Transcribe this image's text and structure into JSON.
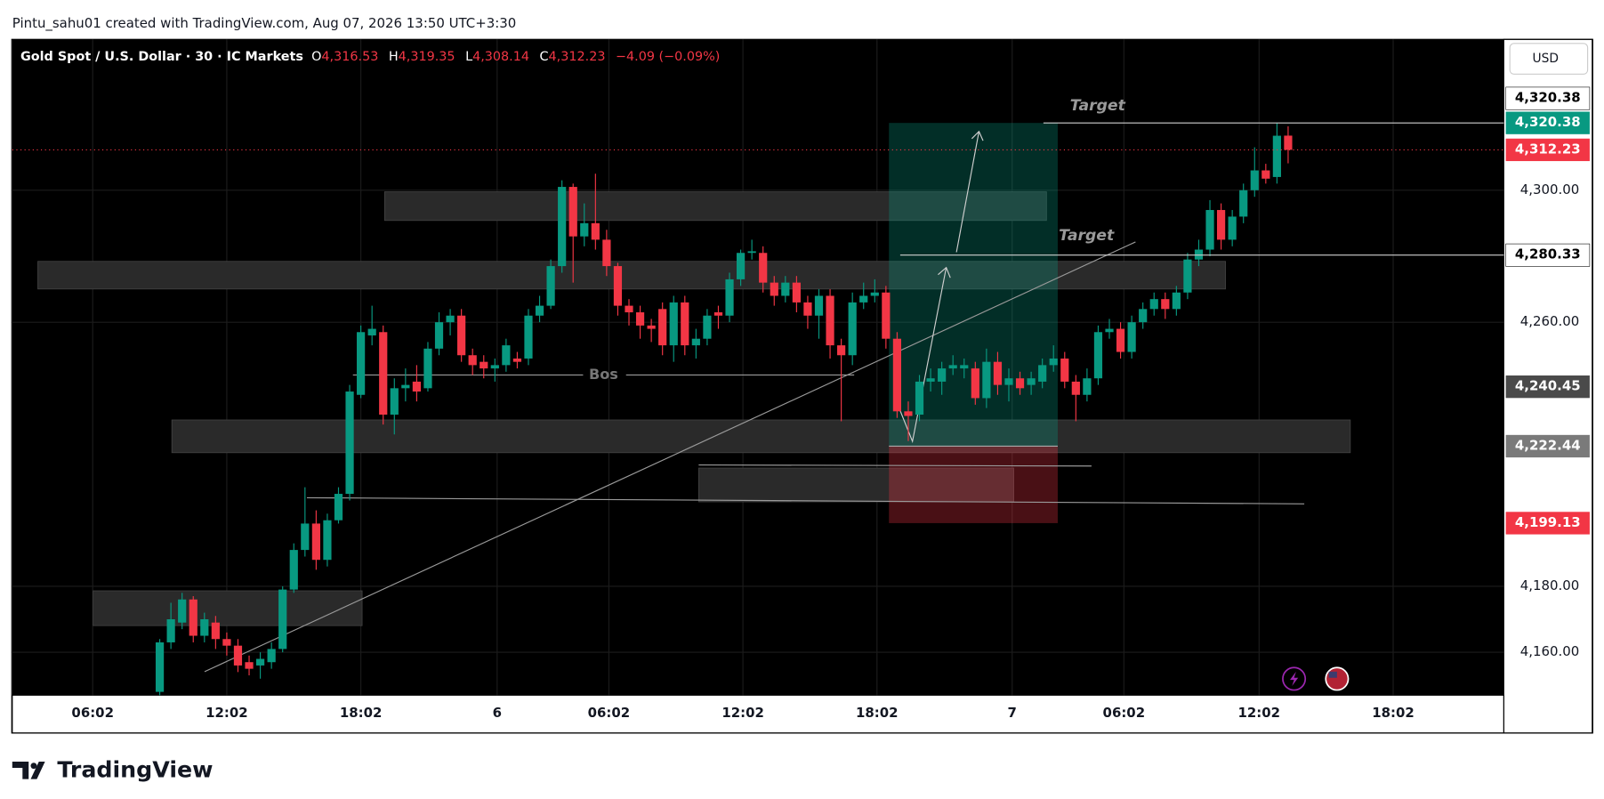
{
  "header": "Pintu_sahu01 created with TradingView.com, Aug 07, 2026 13:50 UTC+3:30",
  "logo": "TradingView",
  "chart_data": {
    "type": "candlestick",
    "legend": {
      "symbol": "Gold Spot / U.S. Dollar · 30 · IC Markets",
      "o_label": "O",
      "o": "4,316.53",
      "h_label": "H",
      "h": "4,319.35",
      "l_label": "L",
      "l": "4,308.14",
      "c_label": "C",
      "c": "4,312.23",
      "change": "−4.09 (−0.09%)"
    },
    "currency": "USD",
    "up_color": "#089981",
    "down_color": "#f23645",
    "open": [
      4148,
      4163,
      4169,
      4176,
      4165,
      4169,
      4164,
      4162,
      4157,
      4156,
      4157,
      4161,
      4179,
      4191,
      4199,
      4188,
      4200,
      4208,
      4238,
      4256,
      4257,
      4232,
      4240,
      4242,
      4240,
      4252,
      4260,
      4262,
      4250,
      4248,
      4246,
      4247,
      4249,
      4249,
      4262,
      4265,
      4277,
      4301,
      4286,
      4290,
      4285,
      4277,
      4265,
      4263,
      4259,
      4264,
      4253,
      4266,
      4253,
      4255,
      4263,
      4262,
      4273,
      4281,
      4281,
      4272,
      4268,
      4272,
      4266,
      4262,
      4268,
      4253,
      4250,
      4266,
      4268,
      4269,
      4255,
      4233,
      4232,
      4242,
      4242,
      4246,
      4246,
      4246,
      4237,
      4248,
      4241,
      4243,
      4241,
      4242,
      4247,
      4249,
      4242,
      4238,
      4243,
      4257,
      4258,
      4251,
      4260,
      4264,
      4267,
      4264,
      4269,
      4279,
      4282,
      4294,
      4285,
      4292,
      4300,
      4306,
      4304,
      4316.53
    ],
    "high": [
      4164,
      4175,
      4178,
      4177,
      4172,
      4171,
      4166,
      4164,
      4159,
      4160,
      4163,
      4180,
      4193,
      4210,
      4203,
      4202,
      4210,
      4241,
      4259,
      4265,
      4259,
      4243,
      4246,
      4247,
      4254,
      4263,
      4264,
      4264,
      4252,
      4250,
      4249,
      4255,
      4251,
      4264,
      4268,
      4279,
      4303,
      4302,
      4296,
      4305,
      4288,
      4278,
      4267,
      4265,
      4261,
      4266,
      4268,
      4268,
      4258,
      4264,
      4265,
      4275,
      4282,
      4285,
      4283,
      4274,
      4274,
      4274,
      4268,
      4270,
      4270,
      4255,
      4269,
      4272,
      4273,
      4271,
      4257,
      4236,
      4244,
      4246,
      4248,
      4250,
      4249,
      4248,
      4252,
      4251,
      4246,
      4245,
      4245,
      4249,
      4253,
      4251,
      4244,
      4246,
      4259,
      4261,
      4260,
      4262,
      4266,
      4269,
      4269,
      4271,
      4281,
      4285,
      4297,
      4296,
      4294,
      4302,
      4313,
      4308,
      4320.4,
      4319.35
    ],
    "low": [
      4147,
      4161,
      4167,
      4163,
      4163,
      4161,
      4159,
      4154,
      4153,
      4152,
      4155,
      4160,
      4178,
      4189,
      4185,
      4186,
      4199,
      4206,
      4237,
      4253,
      4229,
      4226,
      4236,
      4236,
      4239,
      4250,
      4256,
      4248,
      4244,
      4243,
      4242,
      4245,
      4246,
      4247,
      4260,
      4264,
      4275,
      4272,
      4283,
      4282,
      4274,
      4262,
      4259,
      4255,
      4254,
      4250,
      4248,
      4250,
      4249,
      4253,
      4258,
      4260,
      4271,
      4279,
      4269,
      4265,
      4266,
      4263,
      4258,
      4255,
      4249,
      4230,
      4247,
      4264,
      4266,
      4252,
      4231,
      4224,
      4230,
      4239,
      4238,
      4244,
      4243,
      4235,
      4234,
      4238,
      4236,
      4238,
      4238,
      4240,
      4245,
      4240,
      4230,
      4236,
      4241,
      4255,
      4249,
      4249,
      4258,
      4262,
      4261,
      4262,
      4267,
      4277,
      4280,
      4282,
      4283,
      4290,
      4298,
      4302,
      4302,
      4308.14
    ],
    "close": [
      4163,
      4170,
      4176,
      4165,
      4170,
      4164,
      4162,
      4156,
      4155,
      4158,
      4161,
      4179,
      4191,
      4199,
      4188,
      4200,
      4208,
      4239,
      4257,
      4258,
      4232,
      4240,
      4241,
      4239,
      4252,
      4260,
      4262,
      4250,
      4247,
      4246,
      4247,
      4253,
      4248,
      4262,
      4265,
      4277,
      4301,
      4286,
      4290,
      4285,
      4277,
      4265,
      4263,
      4259,
      4258,
      4253,
      4266,
      4253,
      4255,
      4262,
      4262,
      4273,
      4281,
      4281.5,
      4272,
      4268,
      4272,
      4266,
      4262,
      4268,
      4253,
      4250,
      4266,
      4268,
      4269,
      4255,
      4233,
      4231.6,
      4242,
      4243,
      4246,
      4247,
      4247,
      4237,
      4248,
      4241,
      4243,
      4240,
      4243,
      4247,
      4249,
      4242,
      4238,
      4243,
      4257,
      4258,
      4251,
      4260,
      4264,
      4267,
      4264,
      4269,
      4279,
      4282,
      4294,
      4285,
      4292,
      4300,
      4306,
      4303.5,
      4316.5,
      4312.23
    ],
    "xlim": [
      -13.2,
      120.3
    ],
    "xticks": [
      {
        "value": -6,
        "label": "06:02"
      },
      {
        "value": 6,
        "label": "12:02"
      },
      {
        "value": 18,
        "label": "18:02"
      },
      {
        "value": 30.2,
        "label": "6"
      },
      {
        "value": 40.2,
        "label": "06:02"
      },
      {
        "value": 52.2,
        "label": "12:02"
      },
      {
        "value": 64.2,
        "label": "18:02"
      },
      {
        "value": 76.3,
        "label": "7"
      },
      {
        "value": 86.3,
        "label": "06:02"
      },
      {
        "value": 98.4,
        "label": "12:02"
      },
      {
        "value": 110.4,
        "label": "18:02"
      }
    ],
    "ylim": [
      4147,
      4345.7
    ],
    "yticks": [
      {
        "value": 4160,
        "label": "4,160.00"
      },
      {
        "value": 4180,
        "label": "4,180.00"
      },
      {
        "value": 4260,
        "label": "4,260.00"
      },
      {
        "value": 4300,
        "label": "4,300.00"
      }
    ],
    "price_labels": [
      {
        "value": 4320.38,
        "label": "4,320.38",
        "color": "#ffffff"
      },
      {
        "value": 4320.38,
        "label": "4,320.38",
        "color": "#089981"
      },
      {
        "value": 4312.23,
        "label": "4,312.23",
        "color": "#f23645"
      },
      {
        "value": 4280.33,
        "label": "4,280.33",
        "color": "#ffffff"
      },
      {
        "value": 4240.45,
        "label": "4,240.45",
        "color": "#4a4a4a"
      },
      {
        "value": 4222.44,
        "label": "4,222.44",
        "color": "#7a7a7a"
      },
      {
        "value": 4199.13,
        "label": "4,199.13",
        "color": "#f23645"
      }
    ],
    "annotations": {
      "target_upper": "Target",
      "target_lower": "Target",
      "bos": "Bos"
    }
  }
}
